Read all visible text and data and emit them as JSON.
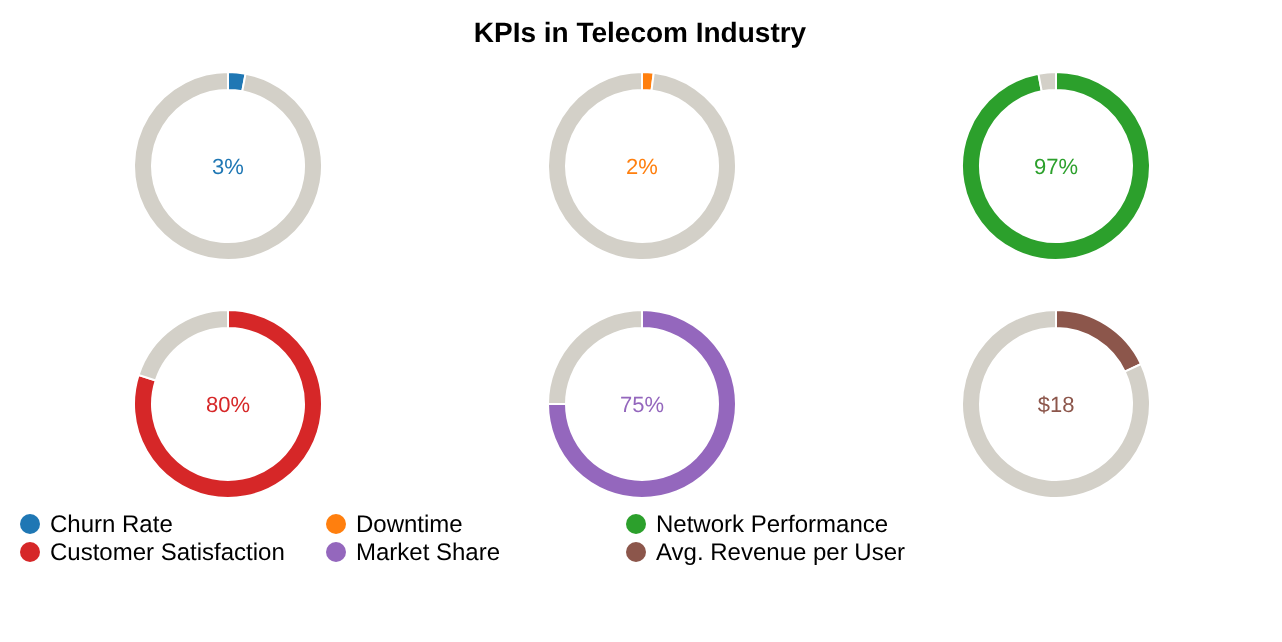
{
  "chart_data": [
    {
      "type": "donut",
      "categories": [
        "Churn Rate",
        null
      ],
      "values": [
        3,
        97
      ],
      "colors": [
        "#1f77b4",
        "#d3d0c8"
      ],
      "annotations": [
        "3%"
      ],
      "legend": "bottom"
    },
    {
      "type": "donut",
      "title": "KPIs in Telecom Industry",
      "categories": [
        "Downtime",
        null
      ],
      "values": [
        2,
        98
      ],
      "colors": [
        "#ff7f0e",
        "#d3d0c8"
      ],
      "annotations": [
        "2%"
      ],
      "legend": "bottom"
    },
    {
      "type": "donut",
      "categories": [
        "Network Performance",
        null
      ],
      "values": [
        97,
        3
      ],
      "colors": [
        "#2ca02c",
        "#d3d0c8"
      ],
      "annotations": [
        "97%"
      ],
      "legend": "bottom"
    },
    {
      "type": "donut",
      "categories": [
        "Customer Satisfaction",
        null
      ],
      "values": [
        80,
        20
      ],
      "colors": [
        "#d62728",
        "#d3d0c8"
      ],
      "annotations": [
        "80%"
      ],
      "legend": "bottom"
    },
    {
      "type": "donut",
      "categories": [
        "Market Share",
        null
      ],
      "values": [
        75,
        25
      ],
      "colors": [
        "#9467bd",
        "#d3d0c8"
      ],
      "annotations": [
        "75%"
      ],
      "legend": "bottom"
    },
    {
      "type": "donut",
      "categories": [
        "Avg. Revenue per User",
        null
      ],
      "values": [
        18,
        82
      ],
      "colors": [
        "#8c564b",
        "#d3d0c8"
      ],
      "annotations": [
        "$18"
      ],
      "legend": "bottom"
    }
  ]
}
